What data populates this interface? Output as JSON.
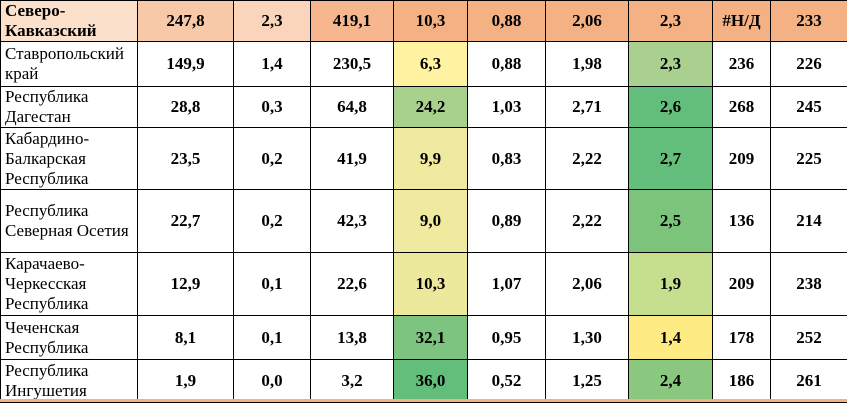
{
  "table": {
    "rows": [
      [
        "Северо-Кавказский",
        "247,8",
        "2,3",
        "419,1",
        "10,3",
        "0,88",
        "2,06",
        "2,3",
        "#Н/Д",
        "233"
      ],
      [
        "Ставропольский край",
        "149,9",
        "1,4",
        "230,5",
        "6,3",
        "0,88",
        "1,98",
        "2,3",
        "236",
        "226"
      ],
      [
        "Республика Дагестан",
        "28,8",
        "0,3",
        "64,8",
        "24,2",
        "1,03",
        "2,71",
        "2,6",
        "268",
        "245"
      ],
      [
        "Кабардино-Балкарская Республика",
        "23,5",
        "0,2",
        "41,9",
        "9,9",
        "0,83",
        "2,22",
        "2,7",
        "209",
        "225"
      ],
      [
        "Республика Северная Осетия",
        "22,7",
        "0,2",
        "42,3",
        "9,0",
        "0,89",
        "2,22",
        "2,5",
        "136",
        "214"
      ],
      [
        "Карачаево-Черкесская Республика",
        "12,9",
        "0,1",
        "22,6",
        "10,3",
        "1,07",
        "2,06",
        "1,9",
        "209",
        "238"
      ],
      [
        "Чеченская Республика",
        "8,1",
        "0,1",
        "13,8",
        "32,1",
        "0,95",
        "1,30",
        "1,4",
        "178",
        "252"
      ],
      [
        "Республика Ингушетия",
        "1,9",
        "0,0",
        "3,2",
        "36,0",
        "0,52",
        "1,25",
        "2,4",
        "186",
        "261"
      ]
    ]
  }
}
